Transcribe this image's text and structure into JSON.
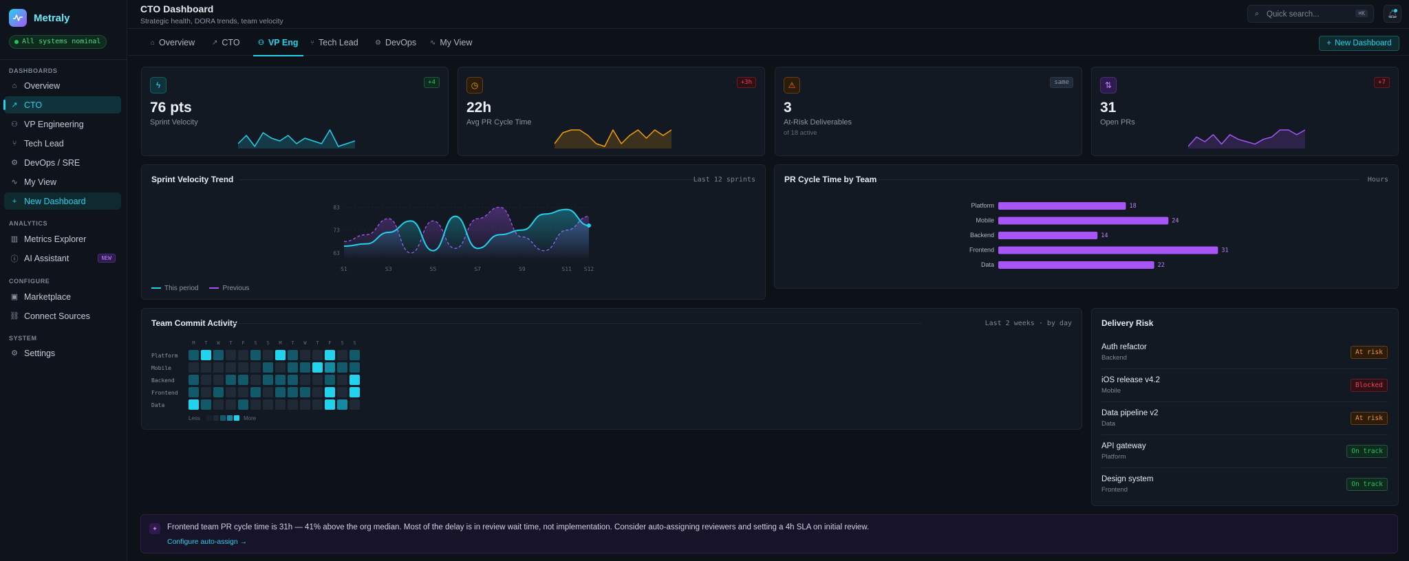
{
  "app": {
    "name": "Metraly",
    "status": "All systems nominal"
  },
  "sidebar": {
    "sections": [
      {
        "title": "DASHBOARDS",
        "items": [
          {
            "label": "Overview",
            "icon": "home-icon"
          },
          {
            "label": "CTO",
            "icon": "trend-icon",
            "active": true
          },
          {
            "label": "VP Engineering",
            "icon": "users-icon"
          },
          {
            "label": "Tech Lead",
            "icon": "git-branch-icon"
          },
          {
            "label": "DevOps / SRE",
            "icon": "gear-icon"
          },
          {
            "label": "My View",
            "icon": "activity-icon"
          },
          {
            "label": "New Dashboard",
            "icon": "plus-icon"
          }
        ]
      },
      {
        "title": "ANALYTICS",
        "items": [
          {
            "label": "Metrics Explorer",
            "icon": "bar-chart-icon"
          },
          {
            "label": "AI Assistant",
            "icon": "info-icon",
            "badge": "NEW"
          }
        ]
      },
      {
        "title": "CONFIGURE",
        "items": [
          {
            "label": "Marketplace",
            "icon": "store-icon"
          },
          {
            "label": "Connect Sources",
            "icon": "link-icon"
          }
        ]
      },
      {
        "title": "SYSTEM",
        "items": [
          {
            "label": "Settings",
            "icon": "gear-icon"
          }
        ]
      }
    ]
  },
  "header": {
    "title": "CTO Dashboard",
    "subtitle": "Strategic health, DORA trends, team velocity",
    "search_placeholder": "Quick search...",
    "search_shortcut": "⌘K"
  },
  "tabs": [
    {
      "label": "Overview",
      "icon": "home-icon"
    },
    {
      "label": "CTO",
      "icon": "trend-icon"
    },
    {
      "label": "VP Eng",
      "icon": "users-icon",
      "active": true
    },
    {
      "label": "Tech Lead",
      "icon": "git-branch-icon"
    },
    {
      "label": "DevOps",
      "icon": "gear-icon"
    },
    {
      "label": "My View",
      "icon": "activity-icon"
    }
  ],
  "new_dashboard_button": "New Dashboard",
  "kpis": [
    {
      "value": "76 pts",
      "label": "Sprint Velocity",
      "delta": "+4",
      "color": "#22d3ee",
      "icon": "bolt-icon",
      "spark": [
        3,
        6,
        2,
        7,
        5,
        4,
        6,
        3,
        5,
        4,
        3,
        8,
        2,
        3,
        4
      ]
    },
    {
      "value": "22h",
      "label": "Avg PR Cycle Time",
      "delta": "+3h",
      "color": "#f59e0b",
      "icon": "clock-icon",
      "spark": [
        2,
        6,
        7,
        7,
        5,
        2,
        1,
        7,
        2,
        5,
        7,
        4,
        7,
        5,
        7
      ]
    },
    {
      "value": "3",
      "label": "At-Risk Deliverables",
      "sub": "of 18 active",
      "delta": "same",
      "color": "#f97316",
      "icon": "warning-icon"
    },
    {
      "value": "31",
      "label": "Open PRs",
      "delta": "+7",
      "color": "#a855f7",
      "icon": "pull-request-icon",
      "spark": [
        1,
        5,
        3,
        6,
        2,
        6,
        4,
        3,
        2,
        4,
        5,
        8,
        8,
        6,
        8
      ]
    }
  ],
  "velocity_chart": {
    "title": "Sprint Velocity Trend",
    "meta": "Last 12 sprints",
    "legend": [
      "This period",
      "Previous"
    ]
  },
  "pr_chart": {
    "title": "PR Cycle Time by Team",
    "meta": "Hours"
  },
  "heatmap": {
    "title": "Team Commit Activity",
    "meta": "Last 2 weeks · by day",
    "days": [
      "M",
      "T",
      "W",
      "T",
      "F",
      "S",
      "S",
      "M",
      "T",
      "W",
      "T",
      "F",
      "S",
      "S"
    ],
    "teams": [
      "Platform",
      "Mobile",
      "Backend",
      "Frontend",
      "Data"
    ],
    "levels": [
      [
        2,
        4,
        2,
        1,
        1,
        2,
        1,
        4,
        2,
        1,
        1,
        4,
        1,
        2
      ],
      [
        1,
        1,
        1,
        1,
        1,
        1,
        2,
        1,
        2,
        2,
        4,
        3,
        2,
        2
      ],
      [
        2,
        1,
        1,
        2,
        2,
        1,
        2,
        2,
        2,
        1,
        1,
        2,
        1,
        4
      ],
      [
        2,
        1,
        2,
        1,
        1,
        2,
        1,
        2,
        2,
        2,
        1,
        4,
        1,
        4
      ],
      [
        4,
        2,
        1,
        1,
        2,
        1,
        1,
        1,
        1,
        1,
        1,
        4,
        3,
        1
      ]
    ],
    "legend_less": "Less",
    "legend_more": "More"
  },
  "delivery_risk": {
    "title": "Delivery Risk",
    "items": [
      {
        "name": "Auth refactor",
        "team": "Backend",
        "status": "At risk",
        "kind": "risk"
      },
      {
        "name": "iOS release v4.2",
        "team": "Mobile",
        "status": "Blocked",
        "kind": "blocked"
      },
      {
        "name": "Data pipeline v2",
        "team": "Data",
        "status": "At risk",
        "kind": "risk"
      },
      {
        "name": "API gateway",
        "team": "Platform",
        "status": "On track",
        "kind": "ok"
      },
      {
        "name": "Design system",
        "team": "Frontend",
        "status": "On track",
        "kind": "ok"
      }
    ]
  },
  "insight": {
    "text": "Frontend team PR cycle time is 31h — 41% above the org median. Most of the delay is in review wait time, not implementation. Consider auto-assigning reviewers and setting a 4h SLA on initial review.",
    "link": "Configure auto-assign →"
  },
  "chart_data": [
    {
      "type": "line",
      "title": "Sprint Velocity Trend",
      "x": [
        "S1",
        "S2",
        "S3",
        "S4",
        "S5",
        "S6",
        "S7",
        "S8",
        "S9",
        "S10",
        "S11",
        "S12"
      ],
      "xticks": [
        "S1",
        "S3",
        "S5",
        "S7",
        "S9",
        "S11",
        "S12"
      ],
      "yticks": [
        63,
        73,
        83
      ],
      "ylim": [
        60,
        87
      ],
      "series": [
        {
          "name": "This period",
          "color": "#22d3ee",
          "values": [
            66,
            67,
            72,
            77,
            64,
            79,
            65,
            71,
            73,
            80,
            82,
            75
          ]
        },
        {
          "name": "Previous",
          "color": "#a855f7",
          "values": [
            68,
            71,
            78,
            63,
            77,
            65,
            78,
            83,
            70,
            64,
            73,
            79
          ]
        }
      ]
    },
    {
      "type": "bar",
      "title": "PR Cycle Time by Team",
      "orientation": "horizontal",
      "categories": [
        "Platform",
        "Mobile",
        "Backend",
        "Frontend",
        "Data"
      ],
      "values": [
        18,
        24,
        14,
        31,
        22
      ],
      "color": "#a855f7",
      "xlim": [
        0,
        33
      ]
    }
  ]
}
